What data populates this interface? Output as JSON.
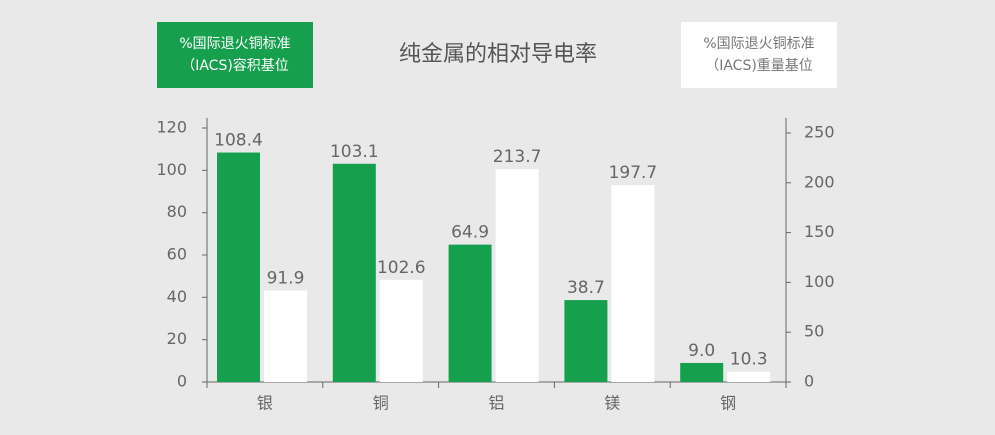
{
  "chart_data": {
    "type": "bar",
    "title": "纯金属的相对导电率",
    "categories": [
      "银",
      "铜",
      "铝",
      "镁",
      "钢"
    ],
    "series": [
      {
        "name": "%国际退火铜标准\n（IACS)容积基位",
        "color": "#16a04e",
        "values": [
          108.4,
          103.1,
          64.9,
          38.7,
          9.0
        ],
        "value_labels": [
          "108.4",
          "103.1",
          "64.9",
          "38.7",
          "9.0"
        ]
      },
      {
        "name": "%国际退火铜标准\n（IACS)重量基位",
        "color": "#ffffff",
        "axis": "y2",
        "values": [
          91.9,
          102.6,
          213.7,
          197.7,
          10.3
        ]
      }
    ],
    "ylim": [
      0,
      120
    ],
    "yticks": [
      0,
      20,
      40,
      60,
      80,
      100,
      120
    ],
    "y2lim": [
      0,
      250
    ],
    "y2ticks": [
      0,
      50,
      100,
      150,
      200,
      250
    ]
  }
}
